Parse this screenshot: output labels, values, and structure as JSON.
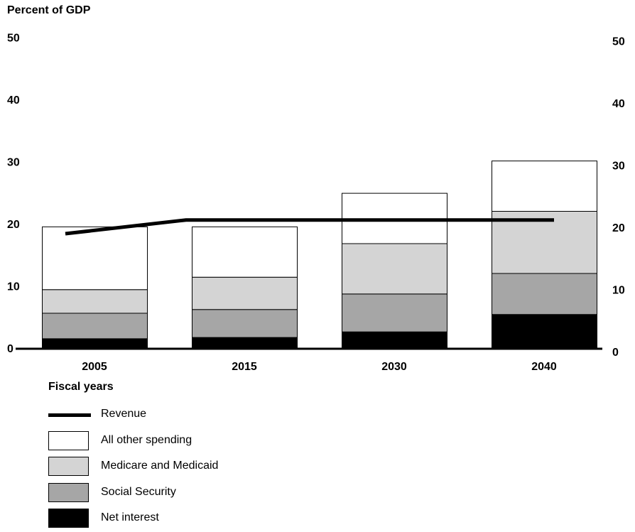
{
  "chart_data": {
    "type": "bar",
    "stacked": true,
    "ylabel": "Percent of GDP",
    "xlabel": "Fiscal years",
    "ylim": [
      0,
      50
    ],
    "yticks": [
      0,
      10,
      20,
      30,
      40,
      50
    ],
    "categories": [
      "2005",
      "2015",
      "2030",
      "2040"
    ],
    "series": [
      {
        "name": "Net interest",
        "values": [
          1.5,
          1.7,
          2.6,
          5.4
        ],
        "color": "#000000"
      },
      {
        "name": "Social Security",
        "values": [
          4.1,
          4.5,
          6.1,
          6.6
        ],
        "color": "#a6a6a6"
      },
      {
        "name": "Medicare and Medicaid",
        "values": [
          3.8,
          5.2,
          8.1,
          10.0
        ],
        "color": "#d4d4d4"
      },
      {
        "name": "All other spending",
        "values": [
          10.1,
          8.1,
          8.1,
          8.1
        ],
        "color": "#ffffff"
      }
    ],
    "line": {
      "name": "Revenue",
      "values": [
        18.4,
        20.6,
        20.6,
        20.6
      ],
      "color": "#000000"
    },
    "right_axis": true,
    "grid": false,
    "legend_position": "bottom-left"
  },
  "legend": {
    "items": [
      {
        "label": "Revenue",
        "kind": "line",
        "color": "#000000"
      },
      {
        "label": "All other spending",
        "kind": "box",
        "color": "#ffffff"
      },
      {
        "label": "Medicare and Medicaid",
        "kind": "box",
        "color": "#d4d4d4"
      },
      {
        "label": "Social Security",
        "kind": "box",
        "color": "#a6a6a6"
      },
      {
        "label": "Net interest",
        "kind": "box",
        "color": "#000000"
      }
    ]
  }
}
